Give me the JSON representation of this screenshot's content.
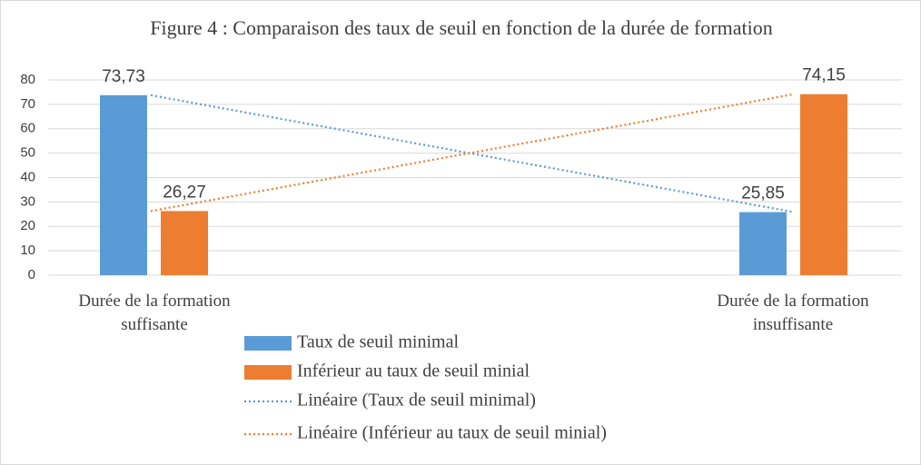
{
  "chart_data": {
    "type": "bar",
    "title": "Figure 4 : Comparaison des taux de seuil en fonction de la durée de formation",
    "categories": [
      "Durée de la formation suffisante",
      "Durée de la formation insuffisante"
    ],
    "series": [
      {
        "name": "Taux de seuil minimal",
        "color": "#5b9bd5",
        "values": [
          73.73,
          25.85
        ],
        "value_labels": [
          "73,73",
          "25,85"
        ]
      },
      {
        "name": "Inférieur au taux de seuil minial",
        "color": "#ed7d31",
        "values": [
          26.27,
          74.15
        ],
        "value_labels": [
          "26,27",
          "74,15"
        ]
      }
    ],
    "trendlines": [
      {
        "name": "Linéaire (Taux de seuil minimal)",
        "color": "#5b9bd5",
        "series": 0
      },
      {
        "name": "Linéaire (Inférieur au taux de seuil minial)",
        "color": "#ed7d31",
        "series": 1
      }
    ],
    "ylim": [
      0,
      80
    ],
    "yticks": [
      0,
      10,
      20,
      30,
      40,
      50,
      60,
      70,
      80
    ],
    "grid": true
  }
}
